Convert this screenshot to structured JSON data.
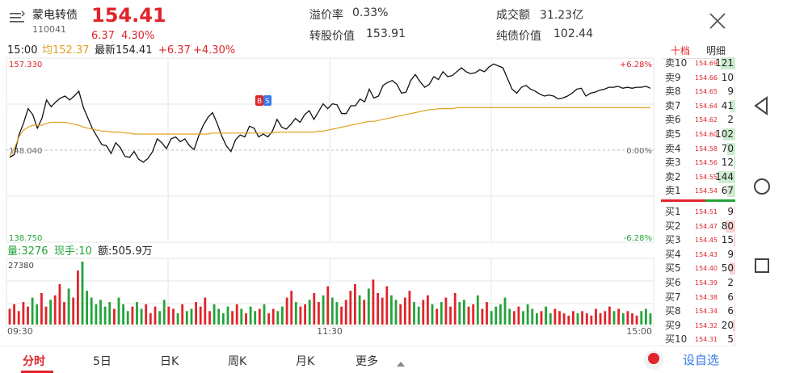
{
  "header": {
    "name": "蒙电转债",
    "code": "110041",
    "price": "154.41",
    "change": "6.37",
    "change_pct": "4.30%",
    "premium_label": "溢价率",
    "premium_value": "0.33%",
    "conv_label": "转股价值",
    "conv_value": "153.91",
    "turnover_label": "成交额",
    "turnover_value": "31.23亿",
    "bond_label": "纯债价值",
    "bond_value": "102.44"
  },
  "info_bar": {
    "time": "15:00",
    "avg": "均152.37",
    "latest": "最新154.41",
    "chg": "+6.37",
    "chg_pct": "+4.30%"
  },
  "price_axis": {
    "top_price": "157.330",
    "mid_price": "148.040",
    "bottom_price": "138.750",
    "top_pct": "+6.28%",
    "mid_pct": "0.00%",
    "bottom_pct": "-6.28%"
  },
  "volume_bar": {
    "vol": "量:3276",
    "hand": "现手:10",
    "amount": "额:505.9万",
    "max": "27380"
  },
  "time_axis": [
    "09:30",
    "11:30",
    "15:00"
  ],
  "chart_data": {
    "type": "line",
    "ylim": [
      138.75,
      157.33
    ],
    "series": [
      {
        "values": [
          147.3,
          147.6,
          149.6,
          150.8,
          152.3,
          151.7,
          150.3,
          151.3,
          153.2,
          152.5,
          153.0,
          153.4,
          153.6,
          153.2,
          153.6,
          154.1,
          152.4,
          151.3,
          150.2,
          149.4,
          148.6,
          148.5,
          147.7,
          148.8,
          148.3,
          147.4,
          147.3,
          147.9,
          147.1,
          146.8,
          147.2,
          147.9,
          149.2,
          148.8,
          148.2,
          149.2,
          149.4,
          148.9,
          149.2,
          148.5,
          148.1,
          149.5,
          150.6,
          151.4,
          151.9,
          150.8,
          149.5,
          148.5,
          147.9,
          149.1,
          149.6,
          149.4,
          150.5,
          150.3,
          149.4,
          149.7,
          149.4,
          150.0,
          151.2,
          150.4,
          150.2,
          150.7,
          151.3,
          150.9,
          151.7,
          152.1,
          151.2,
          152.0,
          152.8,
          152.3,
          152.8,
          152.7,
          151.8,
          151.8,
          152.6,
          152.6,
          153.3,
          153.0,
          154.3,
          153.4,
          153.6,
          154.7,
          155.0,
          155.2,
          154.8,
          153.9,
          154.0,
          155.2,
          155.8,
          155.1,
          154.5,
          154.8,
          155.6,
          155.3,
          156.1,
          155.6,
          155.7,
          156.1,
          156.5,
          156.1,
          155.9,
          156.0,
          156.3,
          156.1,
          156.6,
          156.9,
          156.7,
          156.5,
          155.4,
          154.3,
          153.9,
          154.5,
          154.7,
          154.3,
          154.1,
          153.8,
          153.6,
          153.7,
          153.6,
          153.3,
          153.4,
          153.6,
          153.9,
          154.3,
          154.4,
          153.6,
          153.9,
          154.0,
          154.2,
          154.3,
          154.5,
          154.5,
          154.6,
          154.4,
          154.5,
          154.4,
          154.5,
          154.5,
          154.6,
          154.4
        ]
      },
      {
        "values": [
          147.4,
          148.2,
          149.4,
          150.1,
          150.4,
          150.6,
          150.6,
          150.6,
          150.8,
          150.9,
          150.9,
          150.9,
          150.9,
          150.8,
          150.7,
          150.6,
          150.4,
          150.3,
          150.2,
          150.1,
          150.0,
          150.0,
          149.9,
          149.9,
          149.9,
          149.8,
          149.8,
          149.7,
          149.7,
          149.7,
          149.7,
          149.7,
          149.7,
          149.7,
          149.7,
          149.7,
          149.7,
          149.7,
          149.7,
          149.7,
          149.7,
          149.7,
          149.7,
          149.7,
          149.8,
          149.8,
          149.8,
          149.8,
          149.8,
          149.8,
          149.8,
          149.8,
          149.8,
          149.8,
          149.8,
          149.8,
          149.8,
          149.8,
          149.9,
          149.9,
          149.9,
          149.9,
          149.9,
          149.9,
          149.9,
          149.9,
          149.9,
          150.0,
          150.0,
          150.1,
          150.2,
          150.3,
          150.4,
          150.5,
          150.6,
          150.7,
          150.8,
          150.9,
          151.0,
          151.0,
          151.1,
          151.2,
          151.3,
          151.4,
          151.5,
          151.6,
          151.7,
          151.8,
          151.9,
          152.0,
          152.1,
          152.2,
          152.2,
          152.3,
          152.3,
          152.3,
          152.3,
          152.4,
          152.4,
          152.4,
          152.4,
          152.4,
          152.4,
          152.4,
          152.4,
          152.4,
          152.4,
          152.4,
          152.4,
          152.4,
          152.4,
          152.4,
          152.4,
          152.4,
          152.4,
          152.4,
          152.4,
          152.4,
          152.4,
          152.4,
          152.4,
          152.4,
          152.4,
          152.4,
          152.4,
          152.4,
          152.4,
          152.4,
          152.4,
          152.4,
          152.4,
          152.4,
          152.4,
          152.4,
          152.4,
          152.4,
          152.4,
          152.4,
          152.4,
          152.4
        ]
      }
    ],
    "volumes": [
      7,
      9,
      6,
      10,
      8,
      12,
      9,
      14,
      8,
      11,
      13,
      18,
      10,
      16,
      12,
      24,
      28,
      15,
      12,
      9,
      11,
      8,
      10,
      7,
      12,
      9,
      6,
      8,
      10,
      7,
      9,
      5,
      8,
      6,
      11,
      8,
      7,
      5,
      9,
      6,
      7,
      10,
      8,
      12,
      6,
      9,
      7,
      5,
      8,
      6,
      9,
      7,
      5,
      8,
      6,
      7,
      9,
      5,
      7,
      6,
      8,
      12,
      15,
      10,
      8,
      9,
      11,
      14,
      10,
      13,
      17,
      12,
      10,
      8,
      11,
      15,
      18,
      13,
      11,
      16,
      20,
      14,
      12,
      17,
      13,
      11,
      9,
      12,
      15,
      10,
      8,
      11,
      13,
      9,
      7,
      10,
      12,
      8,
      14,
      10,
      11,
      8,
      9,
      13,
      7,
      10,
      6,
      8,
      9,
      12,
      7,
      6,
      8,
      6,
      9,
      7,
      5,
      6,
      8,
      5,
      7,
      6,
      5,
      4,
      6,
      5,
      6,
      5,
      4,
      7,
      5,
      6,
      8,
      6,
      7,
      5,
      6,
      5,
      4,
      6,
      7,
      5
    ]
  },
  "order_book": {
    "tab_active": "十档",
    "tab_other": "明细",
    "sells": [
      {
        "label": "卖10",
        "price": "154.69",
        "vol": "121"
      },
      {
        "label": "卖9",
        "price": "154.66",
        "vol": "10"
      },
      {
        "label": "卖8",
        "price": "154.65",
        "vol": "9"
      },
      {
        "label": "卖7",
        "price": "154.64",
        "vol": "41"
      },
      {
        "label": "卖6",
        "price": "154.62",
        "vol": "2"
      },
      {
        "label": "卖5",
        "price": "154.60",
        "vol": "102"
      },
      {
        "label": "卖4",
        "price": "154.58",
        "vol": "70"
      },
      {
        "label": "卖3",
        "price": "154.56",
        "vol": "12"
      },
      {
        "label": "卖2",
        "price": "154.55",
        "vol": "144"
      },
      {
        "label": "卖1",
        "price": "154.54",
        "vol": "67"
      }
    ],
    "buys": [
      {
        "label": "买1",
        "price": "154.51",
        "vol": "9"
      },
      {
        "label": "买2",
        "price": "154.47",
        "vol": "80"
      },
      {
        "label": "买3",
        "price": "154.45",
        "vol": "15"
      },
      {
        "label": "买4",
        "price": "154.43",
        "vol": "9"
      },
      {
        "label": "买5",
        "price": "154.40",
        "vol": "50"
      },
      {
        "label": "买6",
        "price": "154.39",
        "vol": "2"
      },
      {
        "label": "买7",
        "price": "154.38",
        "vol": "6"
      },
      {
        "label": "买8",
        "price": "154.34",
        "vol": "6"
      },
      {
        "label": "买9",
        "price": "154.32",
        "vol": "20"
      },
      {
        "label": "买10",
        "price": "154.31",
        "vol": "5"
      }
    ]
  },
  "tabs": {
    "t0": "分时",
    "t1": "5日",
    "t2": "日K",
    "t3": "周K",
    "t4": "月K",
    "t5": "更多",
    "watch": "设自选"
  },
  "colors": {
    "up": "#e0242b",
    "down": "#23a33a",
    "avg_line": "#e0a020",
    "accent": "#3677e8"
  },
  "icons": {
    "menu": "list-icon",
    "close": "close-icon",
    "back": "triangle-back-icon",
    "home": "circle-home-icon",
    "recent": "square-recent-icon",
    "record": "record-dot-icon",
    "marker": "bs-marker-icon"
  }
}
